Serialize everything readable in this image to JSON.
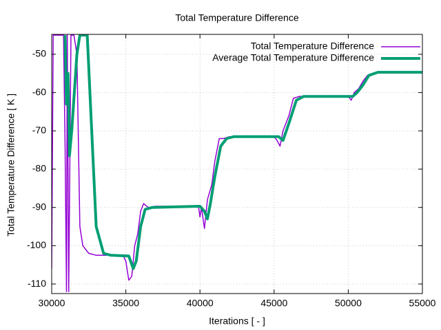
{
  "chart_data": {
    "type": "line",
    "title": "Total Temperature Difference",
    "x_label": "Iterations [ - ]",
    "y_label": "Total Temperature Difference [ K ]",
    "xlim": [
      30000,
      55000
    ],
    "xticks": [
      30000,
      35000,
      40000,
      45000,
      50000,
      55000
    ],
    "ylim": [
      -112.5,
      -44.8
    ],
    "yticks": [
      -110,
      -100,
      -90,
      -80,
      -70,
      -60,
      -50
    ],
    "grid": true,
    "legend": "top-right",
    "series": [
      {
        "name": "Total Temperature Difference",
        "color": "#9400d3",
        "line_width": 1.5,
        "x": [
          30000,
          30100,
          30800,
          30900,
          31000,
          31050,
          31150,
          31300,
          31500,
          31700,
          31900,
          32100,
          32500,
          33000,
          34000,
          34800,
          35000,
          35200,
          35400,
          35600,
          35800,
          36000,
          36200,
          36500,
          37000,
          38000,
          39000,
          39900,
          40000,
          40100,
          40300,
          40500,
          40800,
          41000,
          41300,
          41600,
          42000,
          43000,
          45000,
          45200,
          45400,
          45600,
          46000,
          46300,
          46700,
          48000,
          50000,
          50200,
          50400,
          50700,
          51000,
          51300,
          51600,
          52000,
          55000
        ],
        "values": [
          -106,
          -45,
          -45,
          -73,
          -112,
          -45,
          -112,
          -45,
          -45,
          -50,
          -95,
          -100,
          -102,
          -102.5,
          -102.5,
          -102.5,
          -104,
          -109,
          -108,
          -100,
          -97,
          -91,
          -89,
          -90,
          -89.7,
          -89.7,
          -89.7,
          -89.7,
          -92.5,
          -90,
          -95.5,
          -88,
          -84,
          -78,
          -72,
          -72,
          -71.5,
          -71.5,
          -71.5,
          -72.5,
          -74,
          -70,
          -66,
          -61.5,
          -61,
          -61,
          -61,
          -62,
          -60,
          -59,
          -57,
          -55.5,
          -55,
          -54.7,
          -54.7
        ]
      },
      {
        "name": "Average Total Temperature Difference",
        "color": "#009e73",
        "line_width": 4,
        "x": [
          30900,
          31000,
          31100,
          31200,
          31350,
          31700,
          31900,
          32400,
          33000,
          33500,
          34000,
          35200,
          35500,
          35700,
          36000,
          36300,
          36800,
          40000,
          40300,
          40500,
          40700,
          41000,
          41400,
          41800,
          42300,
          45300,
          45600,
          46000,
          46500,
          47000,
          50300,
          50600,
          51000,
          51400,
          52000,
          55000
        ],
        "values": [
          -45,
          -63,
          -55,
          -76.5,
          -70,
          -50,
          -45,
          -45,
          -95,
          -102,
          -102.5,
          -102.7,
          -106,
          -104,
          -95,
          -90.5,
          -90,
          -89.7,
          -91,
          -93,
          -89,
          -82,
          -74,
          -72,
          -71.5,
          -71.5,
          -72.5,
          -68,
          -62,
          -61,
          -61,
          -60,
          -58,
          -55.5,
          -54.7,
          -54.7
        ]
      }
    ]
  }
}
